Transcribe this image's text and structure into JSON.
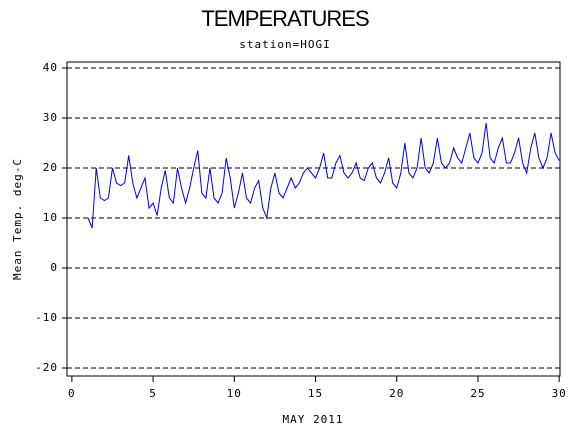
{
  "chart_data": {
    "type": "line",
    "title": "TEMPERATURES",
    "subtitle": "station=HOGI",
    "x_label": "MAY 2011",
    "y_label": "Mean Temp. deg-C",
    "color": "#0000ff",
    "grid": true,
    "xlim": [
      -0.3,
      30.05
    ],
    "ylim": [
      -21.6,
      41.2
    ],
    "xticks": [
      0,
      5,
      10,
      15,
      20,
      25,
      30
    ],
    "yticks": [
      -20,
      -10,
      0,
      10,
      20,
      30,
      40
    ],
    "x": [
      1.0,
      1.25,
      1.5,
      1.75,
      2.0,
      2.25,
      2.5,
      2.75,
      3.0,
      3.25,
      3.5,
      3.75,
      4.0,
      4.25,
      4.5,
      4.75,
      5.0,
      5.25,
      5.5,
      5.75,
      6.0,
      6.25,
      6.5,
      6.75,
      7.0,
      7.25,
      7.5,
      7.75,
      8.0,
      8.25,
      8.5,
      8.75,
      9.0,
      9.25,
      9.5,
      9.75,
      10.0,
      10.25,
      10.5,
      10.75,
      11.0,
      11.25,
      11.5,
      11.75,
      12.0,
      12.25,
      12.5,
      12.75,
      13.0,
      13.25,
      13.5,
      13.75,
      14.0,
      14.25,
      14.5,
      14.75,
      15.0,
      15.25,
      15.5,
      15.75,
      16.0,
      16.25,
      16.5,
      16.75,
      17.0,
      17.25,
      17.5,
      17.75,
      18.0,
      18.25,
      18.5,
      18.75,
      19.0,
      19.25,
      19.5,
      19.75,
      20.0,
      20.25,
      20.5,
      20.75,
      21.0,
      21.25,
      21.5,
      21.75,
      22.0,
      22.25,
      22.5,
      22.75,
      23.0,
      23.25,
      23.5,
      23.75,
      24.0,
      24.25,
      24.5,
      24.75,
      25.0,
      25.25,
      25.5,
      25.75,
      26.0,
      26.25,
      26.5,
      26.75,
      27.0,
      27.25,
      27.5,
      27.75,
      28.0,
      28.25,
      28.5,
      28.75,
      29.0,
      29.25,
      29.5,
      29.75,
      30.0
    ],
    "values": [
      10,
      8,
      20,
      14,
      13.5,
      14,
      20,
      17,
      16.5,
      17,
      22.5,
      17,
      14,
      16,
      18,
      12,
      13,
      10.5,
      16,
      19.5,
      14,
      13,
      20,
      16,
      13,
      16,
      20,
      23.5,
      15,
      14,
      20,
      14,
      13,
      15,
      22,
      18,
      12,
      15,
      19,
      14,
      13,
      16,
      17.5,
      12,
      10,
      16,
      19,
      15,
      14,
      16,
      18,
      16,
      17,
      19,
      20,
      19,
      18,
      20,
      23,
      18,
      18,
      21,
      22.5,
      19,
      18,
      19,
      21,
      18,
      17.5,
      20,
      21,
      18,
      17,
      19,
      22,
      17,
      16,
      19,
      25,
      19,
      18,
      20,
      26,
      20,
      19,
      21,
      26,
      21,
      20,
      21,
      24,
      22,
      21,
      24,
      27,
      22,
      21,
      23,
      29,
      22,
      21,
      24,
      26,
      21,
      21,
      23,
      26,
      21,
      19,
      24,
      27,
      22,
      20,
      22,
      27,
      23,
      21.5
    ]
  }
}
